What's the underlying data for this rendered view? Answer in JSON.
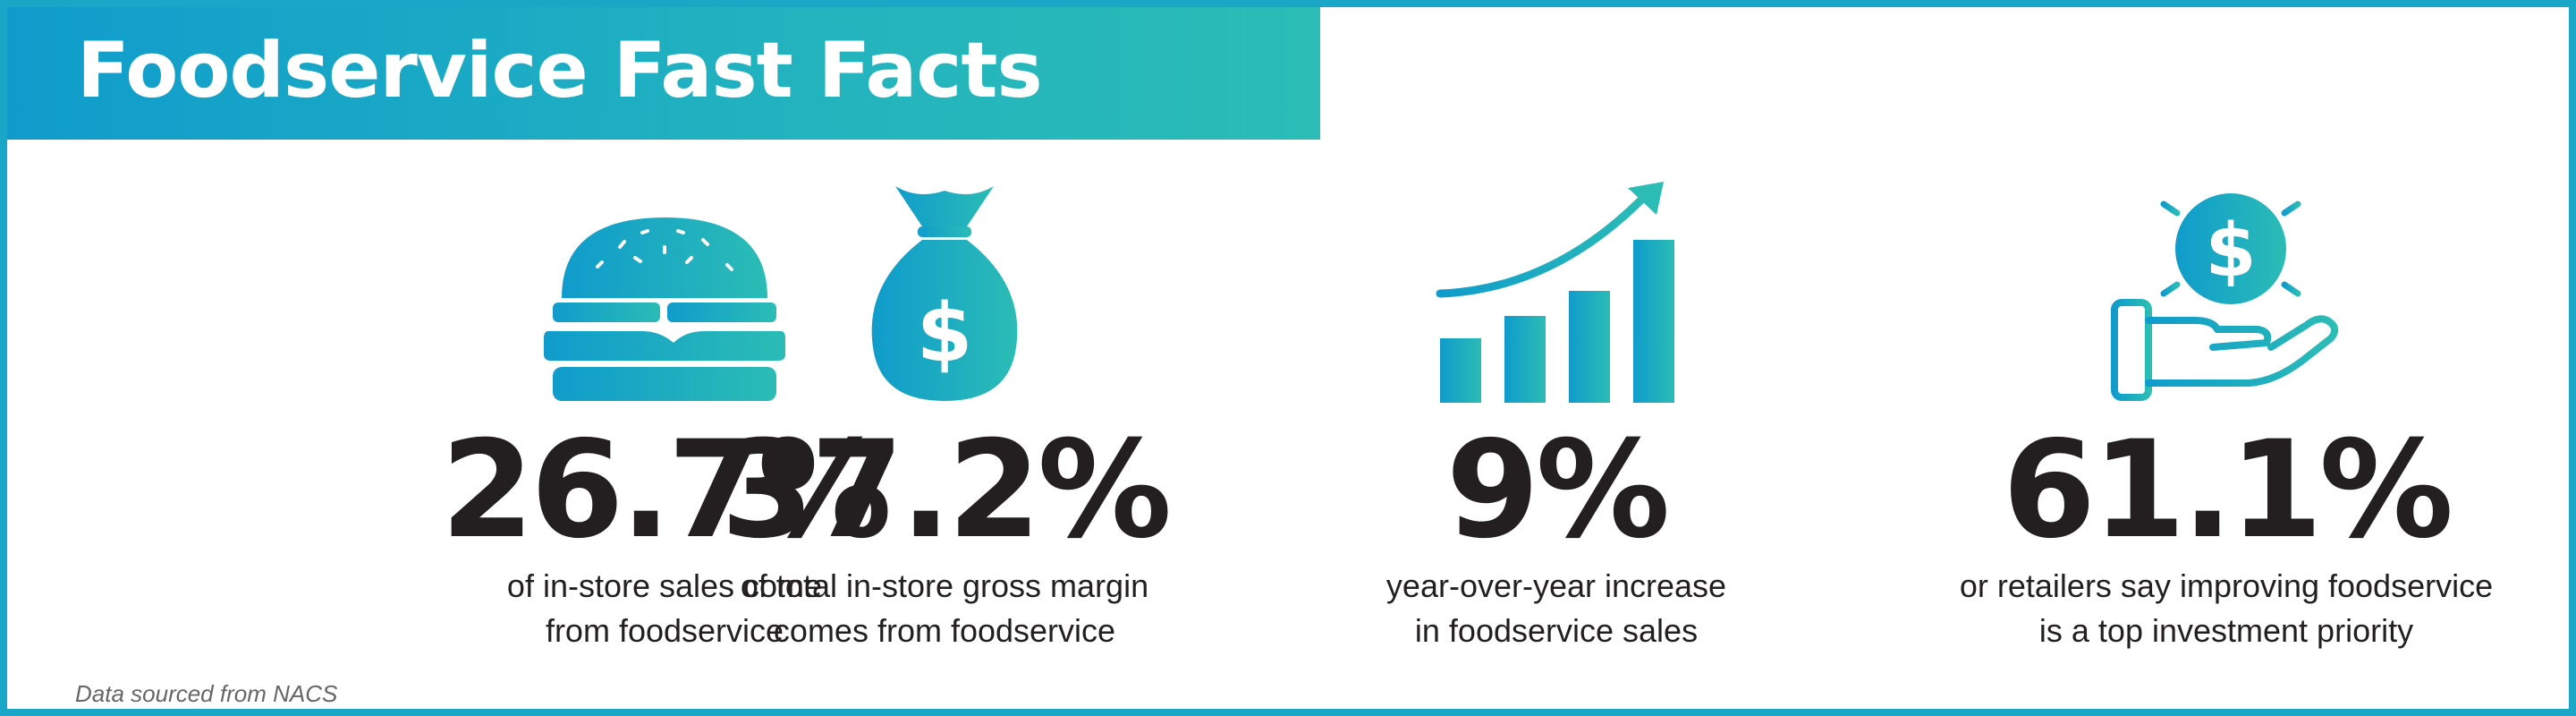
{
  "header": {
    "title": "Foodservice Fast Facts"
  },
  "facts": [
    {
      "icon": "burger-icon",
      "value": "26.7%",
      "line1": "of in-store sales come",
      "line2": "from foodservice"
    },
    {
      "icon": "money-bag-icon",
      "value": "37.2%",
      "line1": "of total in-store gross margin",
      "line2": "comes from foodservice"
    },
    {
      "icon": "growth-chart-icon",
      "value": "9%",
      "line1": "year-over-year increase",
      "line2": "in foodservice sales"
    },
    {
      "icon": "hand-coin-icon",
      "value": "61.1%",
      "line1": "or retailers say improving foodservice",
      "line2": "is a top investment priority"
    }
  ],
  "footer": {
    "source": "Data sourced from NACS"
  },
  "colors": {
    "gradient_start": "#0f9ccc",
    "gradient_end": "#2bbcb5",
    "text": "#231f20"
  }
}
